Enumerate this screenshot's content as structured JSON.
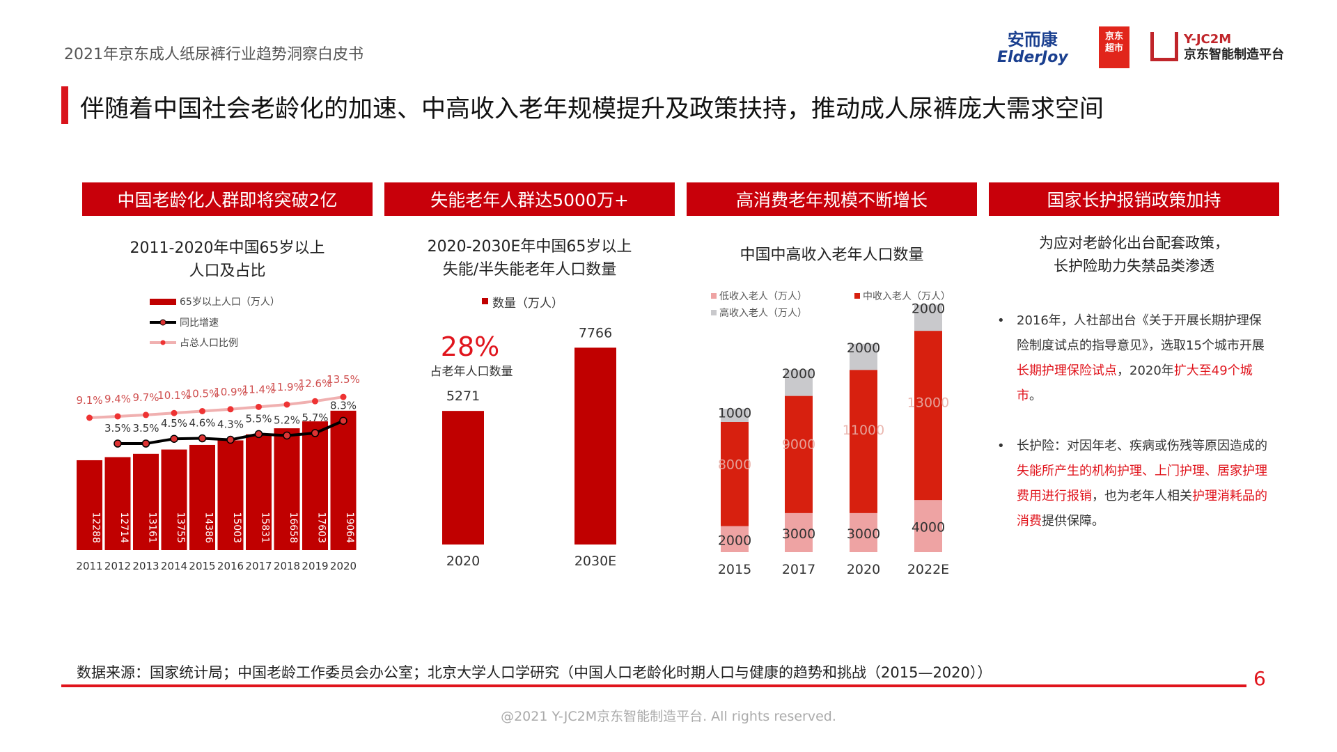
{
  "header": {
    "doc_title": "2021年京东成人纸尿裤行业趋势洞察白皮书",
    "logo1_cn": "安而康",
    "logo1_en": "ElderJoy",
    "logo2_l1": "京东",
    "logo2_l2": "超市",
    "logo3_l1": "Y-JC2M",
    "logo3_l2": "京东智能制造平台"
  },
  "main_title": "伴随着中国社会老龄化的加速、中高收入老年规模提升及政策扶持，推动成人尿裤庞大需求空间",
  "sections": [
    "中国老龄化人群即将突破2亿",
    "失能老年人群达5000万+",
    "高消费老年规模不断增长",
    "国家长护报销政策加持"
  ],
  "colors": {
    "accent": "#c8000a",
    "bar_dark": "#c00000",
    "low": "#eea3a3",
    "mid": "#d7200f",
    "high": "#c9c9cc",
    "ratio_line": "#f0b0b0"
  },
  "chart_data": [
    {
      "type": "bar",
      "title_l1": "2011-2020年中国65岁以上",
      "title_l2": "人口及占比",
      "categories": [
        "2011",
        "2012",
        "2013",
        "2014",
        "2015",
        "2016",
        "2017",
        "2018",
        "2019",
        "2020"
      ],
      "series": [
        {
          "name": "65岁以上人口（万人）",
          "type": "bar",
          "values": [
            12288,
            12714,
            13161,
            13755,
            14386,
            15003,
            15831,
            16658,
            17603,
            19064
          ]
        },
        {
          "name": "同比增速",
          "type": "line",
          "labels": [
            null,
            "3.5%",
            "3.5%",
            "4.5%",
            "4.6%",
            "4.3%",
            "5.5%",
            "5.2%",
            "5.7%",
            "8.3%"
          ],
          "values": [
            null,
            3.5,
            3.5,
            4.5,
            4.6,
            4.3,
            5.5,
            5.2,
            5.7,
            8.3
          ]
        },
        {
          "name": "占总人口比例",
          "type": "line",
          "labels": [
            "9.1%",
            "9.4%",
            "9.7%",
            "10.1%",
            "10.5%",
            "10.9%",
            "11.4%",
            "11.9%",
            "12.6%",
            "13.5%"
          ],
          "values": [
            9.1,
            9.4,
            9.7,
            10.1,
            10.5,
            10.9,
            11.4,
            11.9,
            12.6,
            13.5
          ]
        }
      ]
    },
    {
      "type": "bar",
      "title_l1": "2020-2030E年中国65岁以上",
      "title_l2": "失能/半失能老年人口数量",
      "categories": [
        "2020",
        "2030E"
      ],
      "series": [
        {
          "name": "数量（万人）",
          "values": [
            5271,
            7766
          ]
        }
      ],
      "annotation_value": "28%",
      "annotation_label": "占老年人口数量"
    },
    {
      "type": "bar",
      "stacked": true,
      "title": "中国中高收入老年人口数量",
      "categories": [
        "2015",
        "2017",
        "2020",
        "2022E"
      ],
      "series": [
        {
          "name": "低收入老人（万人）",
          "values": [
            2000,
            3000,
            3000,
            4000
          ]
        },
        {
          "name": "中收入老人（万人）",
          "values": [
            8000,
            9000,
            11000,
            13000
          ]
        },
        {
          "name": "高收入老人（万人）",
          "values": [
            1000,
            2000,
            2000,
            2000
          ]
        }
      ]
    }
  ],
  "policy": {
    "subtitle_l1": "为应对老龄化出台配套政策，",
    "subtitle_l2": "长护险助力失禁品类渗透",
    "bullet1": [
      "2016年，人社部出台《关于开展长期护理保险制度试点的指导意见》，选取15个城市开展",
      "长期护理保险试点",
      "，2020年",
      "扩大至49个城市",
      "。"
    ],
    "bullet2": [
      "长护险：对因年老、疾病或伤残等原因造成的",
      "失能所产生的机构护理、上门护理、居家护理费用进行报销",
      "，也为老年人相关",
      "护理消耗品的消费",
      "提供保障。"
    ],
    "bullet_symbol": "•"
  },
  "footer": {
    "source": "数据来源：国家统计局；中国老龄工作委员会办公室；北京大学人口学研究（中国人口老龄化时期人口与健康的趋势和挑战（2015—2020））",
    "page": "6",
    "copyright": "@2021 Y-JC2M京东智能制造平台. All rights reserved."
  }
}
